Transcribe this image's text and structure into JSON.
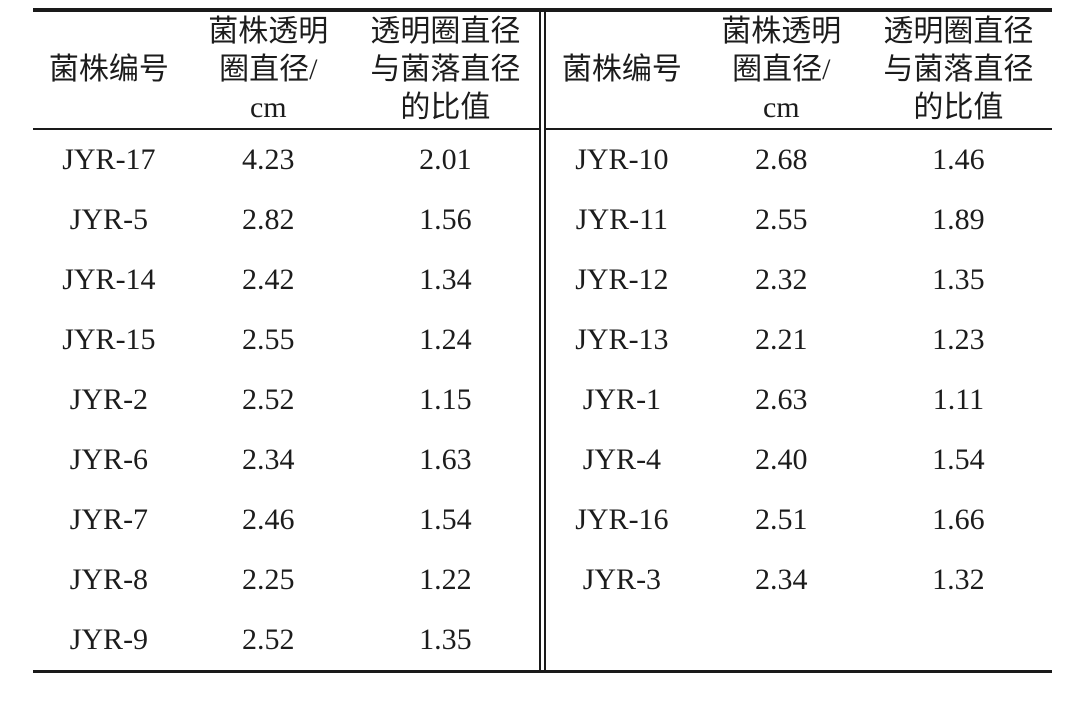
{
  "page": {
    "background": "#ffffff",
    "rule_color": "#1a1a1a",
    "text_color": "#1c1c1c"
  },
  "table": {
    "header": {
      "strain_id": "菌株编号",
      "clear_zone_lines": [
        "菌株透明",
        "圈直径/",
        "cm"
      ],
      "ratio_lines": [
        "透明圈直径",
        "与菌落直径",
        "的比值"
      ]
    },
    "left_rows": [
      [
        "JYR-17",
        "4.23",
        "2.01"
      ],
      [
        "JYR-5",
        "2.82",
        "1.56"
      ],
      [
        "JYR-14",
        "2.42",
        "1.34"
      ],
      [
        "JYR-15",
        "2.55",
        "1.24"
      ],
      [
        "JYR-2",
        "2.52",
        "1.15"
      ],
      [
        "JYR-6",
        "2.34",
        "1.63"
      ],
      [
        "JYR-7",
        "2.46",
        "1.54"
      ],
      [
        "JYR-8",
        "2.25",
        "1.22"
      ],
      [
        "JYR-9",
        "2.52",
        "1.35"
      ]
    ],
    "right_rows": [
      [
        "JYR-10",
        "2.68",
        "1.46"
      ],
      [
        "JYR-11",
        "2.55",
        "1.89"
      ],
      [
        "JYR-12",
        "2.32",
        "1.35"
      ],
      [
        "JYR-13",
        "2.21",
        "1.23"
      ],
      [
        "JYR-1",
        "2.63",
        "1.11"
      ],
      [
        "JYR-4",
        "2.40",
        "1.54"
      ],
      [
        "JYR-16",
        "2.51",
        "1.66"
      ],
      [
        "JYR-3",
        "2.34",
        "1.32"
      ]
    ]
  }
}
